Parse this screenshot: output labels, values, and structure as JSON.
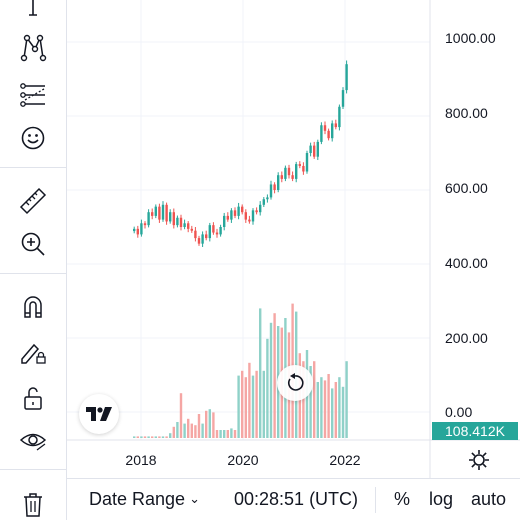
{
  "toolbar": {
    "tools": [
      {
        "name": "cursor-tool"
      },
      {
        "name": "pattern-tool"
      },
      {
        "name": "prediction-tool"
      },
      {
        "name": "emoji-tool"
      },
      {
        "name": "ruler-tool"
      },
      {
        "name": "zoom-in-tool"
      },
      {
        "name": "magnet-tool"
      },
      {
        "name": "drawing-mode-tool"
      },
      {
        "name": "lock-tool"
      },
      {
        "name": "visibility-tool"
      },
      {
        "name": "trash-tool"
      }
    ]
  },
  "colors": {
    "up": "#26a69a",
    "down": "#ef5350",
    "up_volume": "#8fd1c8",
    "down_volume": "#f5a6a4",
    "grid": "#f0f3fa",
    "accent": "#26a69a"
  },
  "price_axis": {
    "labels": [
      "1000.00",
      "800.00",
      "600.00",
      "400.00",
      "200.00",
      "0.00"
    ],
    "current_value_label": "108.412K"
  },
  "time_axis": {
    "labels": [
      "2018",
      "2020",
      "2022"
    ]
  },
  "bottom_bar": {
    "date_range_label": "Date Range",
    "time": "00:28:51 (UTC)",
    "percent_label": "%",
    "log_label": "log",
    "auto_label": "auto"
  },
  "chart_data": {
    "type": "candlestick",
    "interval": "monthly",
    "price_levels": [
      1000,
      800,
      600,
      400,
      200,
      0
    ],
    "time_labels": [
      "2018",
      "2020",
      "2022"
    ],
    "current_value": "108.412K",
    "close": [
      495,
      480,
      510,
      505,
      540,
      530,
      555,
      520,
      560,
      515,
      540,
      505,
      525,
      500,
      510,
      495,
      490,
      470,
      455,
      480,
      470,
      505,
      485,
      480,
      500,
      530,
      520,
      545,
      530,
      555,
      540,
      520,
      515,
      545,
      540,
      560,
      575,
      580,
      615,
      600,
      640,
      630,
      660,
      640,
      630,
      670,
      665,
      650,
      700,
      720,
      690,
      730,
      775,
      760,
      740,
      780,
      770,
      825,
      870,
      940
    ],
    "volume_relative": [
      0.01,
      0.01,
      0.01,
      0.01,
      0.01,
      0.01,
      0.01,
      0.01,
      0.01,
      0.01,
      0.03,
      0.07,
      0.1,
      0.28,
      0.09,
      0.12,
      0.09,
      0.08,
      0.15,
      0.09,
      0.17,
      0.18,
      0.16,
      0.05,
      0.05,
      0.05,
      0.05,
      0.06,
      0.05,
      0.39,
      0.42,
      0.38,
      0.47,
      0.39,
      0.42,
      0.81,
      0.42,
      0.62,
      0.72,
      0.78,
      0.7,
      0.69,
      0.75,
      0.66,
      0.84,
      0.79,
      0.53,
      0.48,
      0.55,
      0.45,
      0.48,
      0.35,
      0.38,
      0.36,
      0.4,
      0.31,
      0.35,
      0.38,
      0.32,
      0.48
    ]
  }
}
